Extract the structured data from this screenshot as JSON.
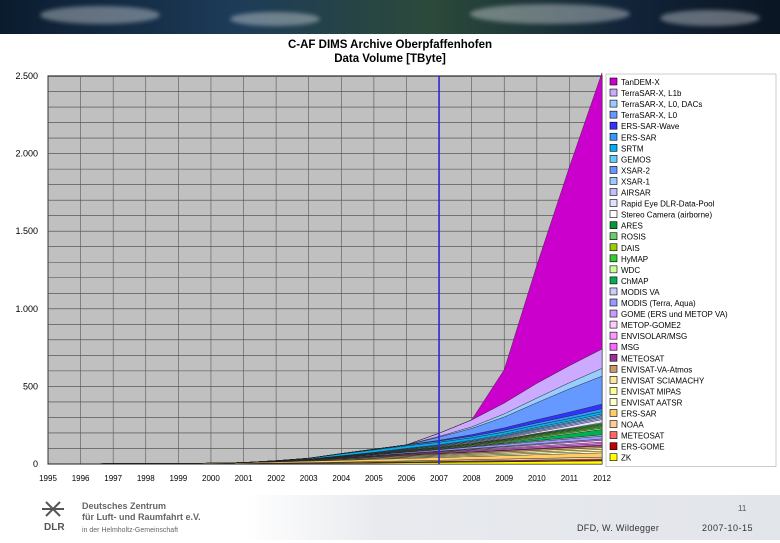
{
  "slide": {
    "title_line1": "C-AF DIMS Archive Oberpfaffenhofen",
    "title_line2": "Data Volume [TByte]",
    "page_number": "11",
    "author": "DFD, W. Wildegger",
    "date": "2007-10-15",
    "logo_text": "DLR",
    "org_line1": "Deutsches Zentrum",
    "org_line2": "für Luft- und Raumfahrt e.V.",
    "org_line3": "in der Helmholtz-Gemeinschaft"
  },
  "chart_data": {
    "type": "area",
    "stacked": true,
    "title": "C-AF DIMS Archive Oberpfaffenhofen\nData Volume [TByte]",
    "xlabel": "",
    "ylabel": "",
    "x": [
      1995,
      1996,
      1997,
      1998,
      1999,
      2000,
      2001,
      2002,
      2003,
      2004,
      2005,
      2006,
      2007,
      2008,
      2009,
      2010,
      2011,
      2012
    ],
    "x_tick_labels": [
      "1995",
      "1996",
      "1997",
      "1998",
      "1999",
      "2000",
      "2001",
      "2002",
      "2003",
      "2004",
      "2005",
      "2006",
      "2007",
      "2008",
      "2009",
      "2010",
      "2011",
      "2012"
    ],
    "ylim": [
      0,
      2500
    ],
    "y_ticks": [
      0,
      500,
      1000,
      1500,
      2000,
      2500
    ],
    "y_tick_labels": [
      "0",
      "500",
      "1.000",
      "1.500",
      "2.000",
      "2.500"
    ],
    "grid": true,
    "plot_background": "#c0c0c0",
    "vertical_marker": {
      "x": 2007,
      "color": "#2b2bd6"
    },
    "legend_position": "right",
    "series": [
      {
        "name": "ZK",
        "color": "#ffff00",
        "values": [
          0,
          0,
          0,
          0,
          0,
          0,
          1,
          2,
          3,
          4,
          6,
          8,
          10,
          12,
          14,
          16,
          18,
          20
        ]
      },
      {
        "name": "ERS-GOME",
        "color": "#c00000",
        "values": [
          0,
          0,
          0,
          0,
          0,
          0,
          0,
          1,
          1,
          2,
          2,
          3,
          3,
          4,
          4,
          5,
          5,
          6
        ]
      },
      {
        "name": "METEOSAT",
        "color": "#ff6666",
        "values": [
          0,
          0,
          0,
          0,
          0,
          0,
          1,
          1,
          2,
          2,
          3,
          3,
          4,
          4,
          5,
          5,
          6,
          6
        ]
      },
      {
        "name": "NOAA",
        "color": "#ffcc99",
        "values": [
          0,
          0,
          0,
          0,
          0,
          0,
          1,
          2,
          3,
          4,
          5,
          6,
          7,
          8,
          9,
          10,
          11,
          12
        ]
      },
      {
        "name": "ERS-SAR",
        "color": "#ffcc66",
        "values": [
          0,
          1,
          2,
          3,
          4,
          5,
          6,
          8,
          10,
          12,
          14,
          16,
          18,
          20,
          22,
          24,
          26,
          28
        ]
      },
      {
        "name": "ENVISAT AATSR",
        "color": "#ffffcc",
        "values": [
          0,
          0,
          0,
          0,
          0,
          0,
          0,
          1,
          2,
          3,
          4,
          5,
          6,
          7,
          8,
          9,
          10,
          11
        ]
      },
      {
        "name": "ENVISAT MIPAS",
        "color": "#ffff99",
        "values": [
          0,
          0,
          0,
          0,
          0,
          0,
          0,
          1,
          2,
          3,
          4,
          5,
          6,
          7,
          8,
          9,
          10,
          11
        ]
      },
      {
        "name": "ENVISAT SCIAMACHY",
        "color": "#ffe699",
        "values": [
          0,
          0,
          0,
          0,
          0,
          0,
          0,
          1,
          2,
          3,
          4,
          5,
          6,
          7,
          8,
          9,
          10,
          11
        ]
      },
      {
        "name": "ENVISAT-VA-Atmos",
        "color": "#cc9966",
        "values": [
          0,
          0,
          0,
          0,
          0,
          0,
          0,
          1,
          2,
          3,
          4,
          5,
          6,
          7,
          8,
          9,
          10,
          11
        ]
      },
      {
        "name": "METEOSAT",
        "color": "#993399",
        "values": [
          0,
          0,
          0,
          0,
          0,
          0,
          0,
          1,
          1,
          2,
          2,
          3,
          3,
          4,
          4,
          5,
          5,
          6
        ]
      },
      {
        "name": "MSG",
        "color": "#ff66ff",
        "values": [
          0,
          0,
          0,
          0,
          0,
          0,
          0,
          0,
          1,
          2,
          3,
          4,
          5,
          6,
          7,
          8,
          9,
          10
        ]
      },
      {
        "name": "ENVISOLAR/MSG",
        "color": "#ff99ff",
        "values": [
          0,
          0,
          0,
          0,
          0,
          0,
          0,
          0,
          0,
          1,
          2,
          3,
          4,
          5,
          6,
          7,
          8,
          9
        ]
      },
      {
        "name": "METOP-GOME2",
        "color": "#ffccff",
        "values": [
          0,
          0,
          0,
          0,
          0,
          0,
          0,
          0,
          0,
          0,
          0,
          1,
          2,
          4,
          6,
          8,
          10,
          12
        ]
      },
      {
        "name": "GOME (ERS und METOP VA)",
        "color": "#cc99ff",
        "values": [
          0,
          0,
          0,
          0,
          0,
          0,
          0,
          0,
          0,
          0,
          1,
          2,
          3,
          4,
          5,
          6,
          7,
          8
        ]
      },
      {
        "name": "MODIS (Terra, Aqua)",
        "color": "#9999ff",
        "values": [
          0,
          0,
          0,
          0,
          0,
          0,
          0,
          0,
          1,
          3,
          5,
          7,
          9,
          11,
          13,
          15,
          17,
          19
        ]
      },
      {
        "name": "MODIS VA",
        "color": "#ccccff",
        "values": [
          0,
          0,
          0,
          0,
          0,
          0,
          0,
          0,
          0,
          0,
          1,
          2,
          3,
          4,
          5,
          6,
          7,
          8
        ]
      },
      {
        "name": "ChMAP",
        "color": "#00b050",
        "values": [
          0,
          0,
          0,
          0,
          0,
          0,
          0,
          0,
          0,
          0,
          0,
          0,
          0,
          0,
          5,
          15,
          25,
          35
        ]
      },
      {
        "name": "WDC",
        "color": "#ccff99",
        "values": [
          0,
          0,
          0,
          0,
          0,
          0,
          0,
          0,
          0,
          0,
          1,
          2,
          3,
          4,
          5,
          6,
          7,
          8
        ]
      },
      {
        "name": "HyMAP",
        "color": "#33cc33",
        "values": [
          0,
          0,
          0,
          0,
          0,
          0,
          0,
          0,
          0,
          1,
          2,
          3,
          4,
          5,
          6,
          7,
          8,
          9
        ]
      },
      {
        "name": "DAIS",
        "color": "#99cc00",
        "values": [
          0,
          0,
          0,
          0,
          0,
          0,
          0,
          1,
          1,
          2,
          2,
          3,
          3,
          4,
          4,
          5,
          5,
          6
        ]
      },
      {
        "name": "ROSIS",
        "color": "#66cc66",
        "values": [
          0,
          0,
          0,
          0,
          0,
          0,
          0,
          1,
          1,
          2,
          2,
          3,
          3,
          4,
          4,
          5,
          5,
          6
        ]
      },
      {
        "name": "ARES",
        "color": "#009933",
        "values": [
          0,
          0,
          0,
          0,
          0,
          0,
          0,
          0,
          0,
          0,
          0,
          0,
          0,
          1,
          3,
          5,
          7,
          9
        ]
      },
      {
        "name": "Stereo Camera (airborne)",
        "color": "#ffffff",
        "values": [
          0,
          0,
          0,
          0,
          0,
          0,
          0,
          0,
          0,
          0,
          0,
          0,
          0,
          1,
          2,
          3,
          4,
          5
        ]
      },
      {
        "name": "Rapid Eye DLR-Data-Pool",
        "color": "#e0e0ff",
        "values": [
          0,
          0,
          0,
          0,
          0,
          0,
          0,
          0,
          0,
          0,
          0,
          0,
          0,
          0,
          5,
          10,
          15,
          20
        ]
      },
      {
        "name": "AIRSAR",
        "color": "#c0c0ff",
        "values": [
          0,
          0,
          0,
          0,
          0,
          0,
          0,
          0,
          0,
          1,
          2,
          3,
          4,
          5,
          6,
          7,
          8,
          9
        ]
      },
      {
        "name": "XSAR-1",
        "color": "#99ccff",
        "values": [
          0,
          0,
          0,
          0,
          0,
          0,
          0,
          0,
          0,
          1,
          2,
          3,
          4,
          5,
          6,
          7,
          8,
          9
        ]
      },
      {
        "name": "XSAR-2",
        "color": "#6699ff",
        "values": [
          0,
          0,
          0,
          0,
          0,
          0,
          0,
          0,
          0,
          1,
          2,
          3,
          4,
          5,
          6,
          7,
          8,
          9
        ]
      },
      {
        "name": "GEMOS",
        "color": "#66ccff",
        "values": [
          0,
          0,
          0,
          0,
          0,
          0,
          0,
          0,
          0,
          1,
          2,
          3,
          4,
          5,
          6,
          7,
          8,
          9
        ]
      },
      {
        "name": "SRTM",
        "color": "#00b0f0",
        "values": [
          0,
          0,
          0,
          0,
          0,
          0,
          0,
          0,
          5,
          12,
          16,
          16,
          16,
          16,
          16,
          16,
          16,
          16
        ]
      },
      {
        "name": "ERS-SAR",
        "color": "#3399ff",
        "values": [
          0,
          0,
          0,
          0,
          0,
          0,
          0,
          0,
          0,
          2,
          4,
          6,
          8,
          10,
          12,
          14,
          16,
          18
        ]
      },
      {
        "name": "ERS-SAR-Wave",
        "color": "#3333ff",
        "values": [
          0,
          0,
          0,
          0,
          0,
          0,
          0,
          0,
          0,
          0,
          0,
          0,
          5,
          10,
          15,
          20,
          25,
          30
        ]
      },
      {
        "name": "TerraSAR-X, L0",
        "color": "#6699ff",
        "values": [
          0,
          0,
          0,
          0,
          0,
          0,
          0,
          0,
          0,
          0,
          0,
          0,
          20,
          40,
          70,
          110,
          150,
          180
        ]
      },
      {
        "name": "TerraSAR-X, L0, DACs",
        "color": "#99ccff",
        "values": [
          0,
          0,
          0,
          0,
          0,
          0,
          0,
          0,
          0,
          0,
          0,
          0,
          5,
          10,
          20,
          30,
          40,
          50
        ]
      },
      {
        "name": "TerraSAR-X, L1b",
        "color": "#ccaaff",
        "values": [
          0,
          0,
          0,
          0,
          0,
          0,
          0,
          0,
          0,
          0,
          0,
          0,
          20,
          45,
          70,
          95,
          110,
          125
        ]
      },
      {
        "name": "TanDEM-X",
        "color": "#cc00cc",
        "values": [
          0,
          0,
          0,
          0,
          0,
          0,
          0,
          0,
          0,
          0,
          0,
          0,
          0,
          0,
          215,
          760,
          1280,
          1780
        ]
      }
    ]
  }
}
